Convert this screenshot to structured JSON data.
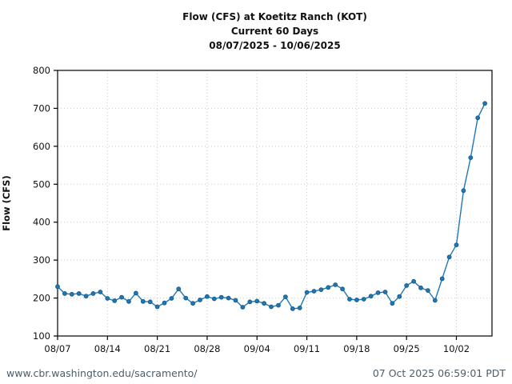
{
  "title": {
    "line1": "Flow (CFS) at Koetitz Ranch (KOT)",
    "line2": "Current 60 Days",
    "line3": "08/07/2025 - 10/06/2025"
  },
  "footer": {
    "left": "www.cbr.washington.edu/sacramento/",
    "right": "07 Oct 2025 06:59:01 PDT"
  },
  "colors": {
    "line": "#2077b4",
    "marker_fill": "#2077b4",
    "marker_edge": "#175e8f",
    "grid": "#c9c9c9",
    "axis": "#000000",
    "footer_text": "#4e5d68"
  },
  "chart_data": {
    "type": "line",
    "title": "Flow (CFS) at Koetitz Ranch (KOT)",
    "subtitle": "Current 60 Days",
    "date_range": "08/07/2025 - 10/06/2025",
    "xlabel": "",
    "ylabel": "Flow (CFS)",
    "ylim": [
      100,
      800
    ],
    "yticks": [
      100,
      200,
      300,
      400,
      500,
      600,
      700,
      800
    ],
    "xtick_labels": [
      "08/07",
      "08/14",
      "08/21",
      "08/28",
      "09/04",
      "09/11",
      "09/18",
      "09/25",
      "10/02"
    ],
    "xtick_day_index": [
      0,
      7,
      14,
      21,
      28,
      35,
      42,
      49,
      56
    ],
    "grid": "dotted",
    "legend": "none",
    "marker": "circle",
    "x_dates": [
      "08/07",
      "08/08",
      "08/09",
      "08/10",
      "08/11",
      "08/12",
      "08/13",
      "08/14",
      "08/15",
      "08/16",
      "08/17",
      "08/18",
      "08/19",
      "08/20",
      "08/21",
      "08/22",
      "08/23",
      "08/24",
      "08/25",
      "08/26",
      "08/27",
      "08/28",
      "08/29",
      "08/30",
      "08/31",
      "09/01",
      "09/02",
      "09/03",
      "09/04",
      "09/05",
      "09/06",
      "09/07",
      "09/08",
      "09/09",
      "09/10",
      "09/11",
      "09/12",
      "09/13",
      "09/14",
      "09/15",
      "09/16",
      "09/17",
      "09/18",
      "09/19",
      "09/20",
      "09/21",
      "09/22",
      "09/23",
      "09/24",
      "09/25",
      "09/26",
      "09/27",
      "09/28",
      "09/29",
      "09/30",
      "10/01",
      "10/02",
      "10/03",
      "10/04",
      "10/05",
      "10/06"
    ],
    "values": [
      230,
      212,
      210,
      212,
      205,
      212,
      216,
      199,
      193,
      202,
      191,
      213,
      191,
      190,
      177,
      187,
      199,
      224,
      200,
      186,
      195,
      204,
      198,
      202,
      200,
      194,
      176,
      190,
      192,
      186,
      177,
      181,
      203,
      172,
      174,
      215,
      218,
      222,
      228,
      235,
      224,
      197,
      195,
      197,
      205,
      214,
      216,
      186,
      204,
      233,
      244,
      227,
      220,
      194,
      251,
      308,
      340,
      483,
      570,
      675,
      713
    ]
  }
}
